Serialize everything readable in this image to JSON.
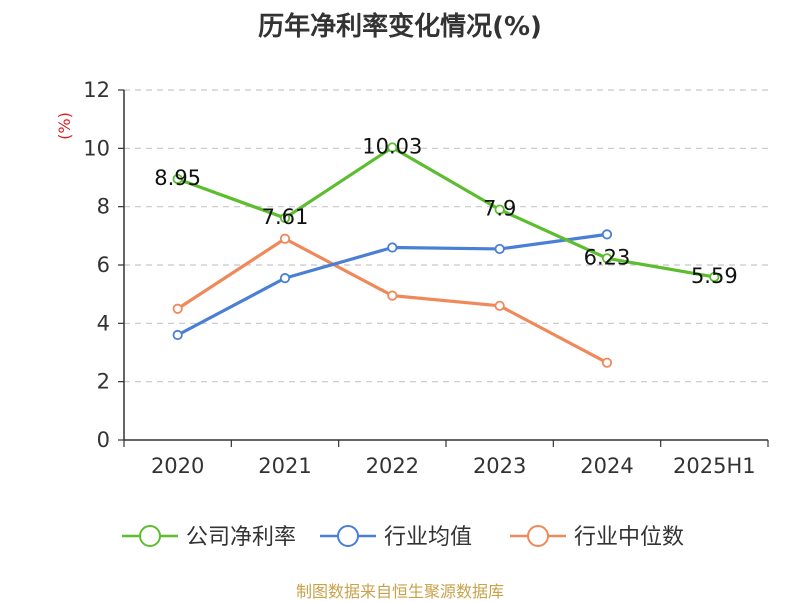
{
  "chart_data": {
    "type": "line",
    "title": "历年净利率变化情况(%)",
    "ylabel": "(%)",
    "xlabel": "",
    "categories": [
      "2020",
      "2021",
      "2022",
      "2023",
      "2024",
      "2025H1"
    ],
    "ylim": [
      0,
      12
    ],
    "yticks": [
      0,
      2,
      4,
      6,
      8,
      10,
      12
    ],
    "grid": true,
    "legend_position": "bottom",
    "series": [
      {
        "name": "公司净利率",
        "color": "#5cbd2e",
        "values": [
          8.95,
          7.61,
          10.03,
          7.9,
          6.23,
          5.59
        ],
        "labels": [
          "8.95",
          "7.61",
          "10.03",
          "7.9",
          "6.23",
          "5.59"
        ]
      },
      {
        "name": "行业均值",
        "color": "#4a7fd6",
        "values": [
          3.6,
          5.55,
          6.6,
          6.55,
          7.05,
          null
        ]
      },
      {
        "name": "行业中位数",
        "color": "#f0895a",
        "values": [
          4.5,
          6.9,
          4.95,
          4.6,
          2.65,
          null
        ]
      }
    ]
  },
  "source_note": "制图数据来自恒生聚源数据库"
}
